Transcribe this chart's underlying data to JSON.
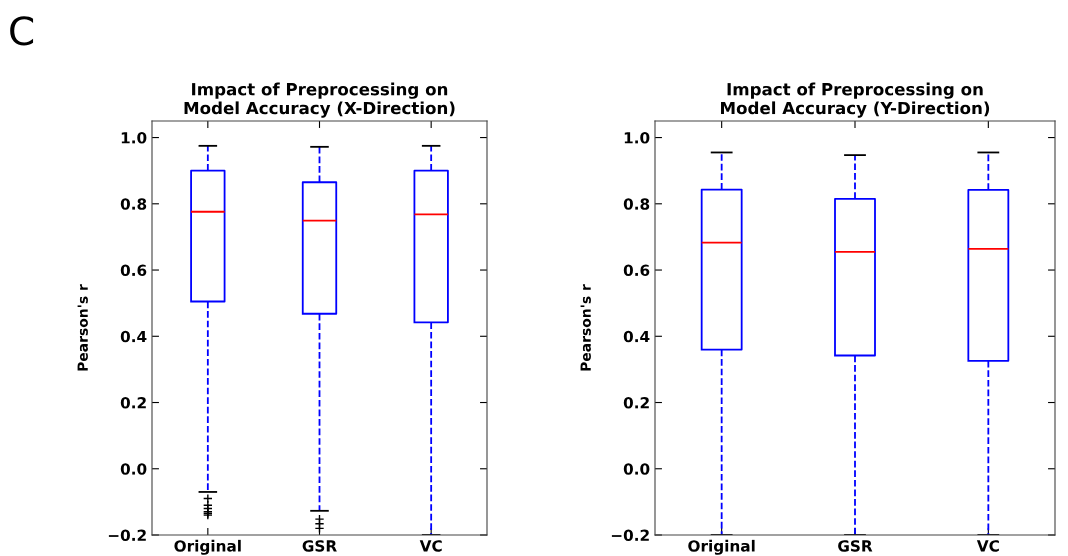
{
  "chart_data": [
    {
      "type": "box",
      "title": "Impact of Preprocessing on\nModel Accuracy (X-Direction)",
      "ylabel": "Pearson's r",
      "annotations": [
        "C"
      ],
      "categories": [
        "Original",
        "GSR",
        "VC"
      ],
      "ylim": [
        -0.2,
        1.05
      ],
      "yticks": [
        {
          "value": -0.2,
          "label": "−0.2"
        },
        {
          "value": 0.0,
          "label": "0.0"
        },
        {
          "value": 0.2,
          "label": "0.2"
        },
        {
          "value": 0.4,
          "label": "0.4"
        },
        {
          "value": 0.6,
          "label": "0.6"
        },
        {
          "value": 0.8,
          "label": "0.8"
        },
        {
          "value": 1.0,
          "label": "1.0"
        }
      ],
      "grid": false,
      "color": "#0000ff",
      "line_style": "dashed",
      "boxes": [
        {
          "low": -0.07,
          "q1": 0.505,
          "median": 0.776,
          "q3": 0.9,
          "high": 0.975,
          "outliers": [
            -0.09,
            -0.11,
            -0.12,
            -0.13,
            -0.135,
            -0.14
          ]
        },
        {
          "low": -0.127,
          "q1": 0.468,
          "median": 0.749,
          "q3": 0.865,
          "high": 0.972,
          "outliers": [
            -0.152,
            -0.166,
            -0.18
          ]
        },
        {
          "low": -0.2,
          "q1": 0.442,
          "median": 0.768,
          "q3": 0.9,
          "high": 0.975
        }
      ]
    },
    {
      "type": "box",
      "title": "Impact of Preprocessing on\nModel Accuracy (Y-Direction)",
      "ylabel": "Pearson's r",
      "categories": [
        "Original",
        "GSR",
        "VC"
      ],
      "ylim": [
        -0.2,
        1.05
      ],
      "yticks": [
        {
          "value": -0.2,
          "label": "−0.2"
        },
        {
          "value": 0.0,
          "label": "0.0"
        },
        {
          "value": 0.2,
          "label": "0.2"
        },
        {
          "value": 0.4,
          "label": "0.4"
        },
        {
          "value": 0.6,
          "label": "0.6"
        },
        {
          "value": 0.8,
          "label": "0.8"
        },
        {
          "value": 1.0,
          "label": "1.0"
        }
      ],
      "grid": false,
      "color": "#0000ff",
      "line_style": "dashed",
      "boxes": [
        {
          "low": -0.2,
          "q1": 0.36,
          "median": 0.683,
          "q3": 0.843,
          "high": 0.955
        },
        {
          "low": -0.2,
          "q1": 0.342,
          "median": 0.655,
          "q3": 0.815,
          "high": 0.947
        },
        {
          "low": -0.2,
          "q1": 0.326,
          "median": 0.664,
          "q3": 0.842,
          "high": 0.955
        }
      ]
    }
  ]
}
